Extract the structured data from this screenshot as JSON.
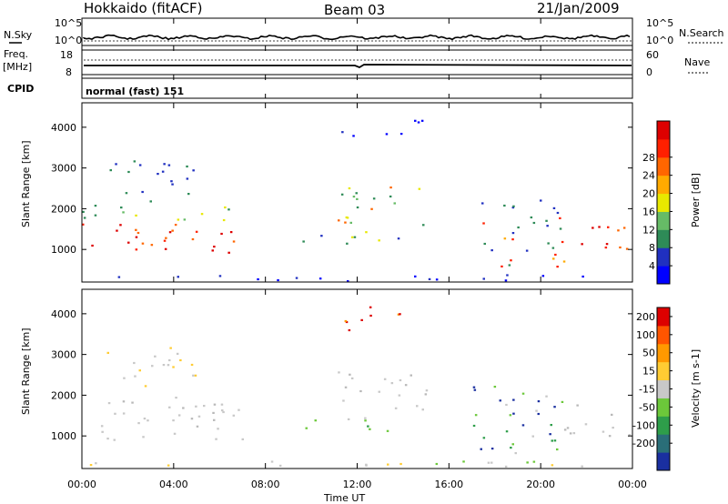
{
  "header": {
    "station": "Hokkaido (fitACF)",
    "beam": "Beam 03",
    "date": "21/Jan/2009"
  },
  "noise_panel": {
    "left_label": "N.Sky",
    "right_label": "N.Search",
    "left_ticks": [
      "10^5",
      "10^0"
    ],
    "right_ticks": [
      "10^5",
      "10^0"
    ]
  },
  "freq_panel": {
    "left_label_line1": "Freq.",
    "left_label_line2": "[MHz]",
    "right_label": "Nave",
    "left_ticks": [
      "18",
      "8"
    ],
    "right_ticks": [
      "60",
      "0"
    ]
  },
  "cpid_panel": {
    "label": "CPID",
    "mode": "normal (fast) 151"
  },
  "chart_data": [
    {
      "type": "heatmap",
      "quantity": "Power",
      "xlabel": "",
      "ylabel": "Slant Range [km]",
      "colorbar_label": "Power [dB]",
      "x_ticks": [
        "00:00",
        "04:00",
        "08:00",
        "12:00",
        "16:00",
        "20:00",
        "00:00"
      ],
      "y_ticks": [
        1000,
        2000,
        3000,
        4000
      ],
      "ylim": [
        200,
        4600
      ],
      "colorbar_ticks": [
        4,
        8,
        12,
        16,
        20,
        24,
        28
      ],
      "colorbar_colors": [
        "#0000ff",
        "#2030c0",
        "#2e8b57",
        "#66bb66",
        "#e8e800",
        "#ffaa00",
        "#ff6600",
        "#ff2000",
        "#dd0000"
      ]
    },
    {
      "type": "heatmap",
      "quantity": "Velocity",
      "xlabel": "Time UT",
      "ylabel": "Slant Range [km]",
      "colorbar_label": "Velocity [m s-1]",
      "x_ticks": [
        "00:00",
        "04:00",
        "08:00",
        "12:00",
        "16:00",
        "20:00",
        "00:00"
      ],
      "y_ticks": [
        1000,
        2000,
        3000,
        4000
      ],
      "ylim": [
        200,
        4600
      ],
      "colorbar_ticks": [
        200,
        100,
        50,
        15,
        -15,
        -50,
        -100,
        -200
      ],
      "colorbar_colors": [
        "#1a2fa0",
        "#2a6e78",
        "#2e9e4a",
        "#6cc83a",
        "#c8c8c8",
        "#ffcc33",
        "#ff9900",
        "#ff5500",
        "#dd0000"
      ]
    }
  ]
}
